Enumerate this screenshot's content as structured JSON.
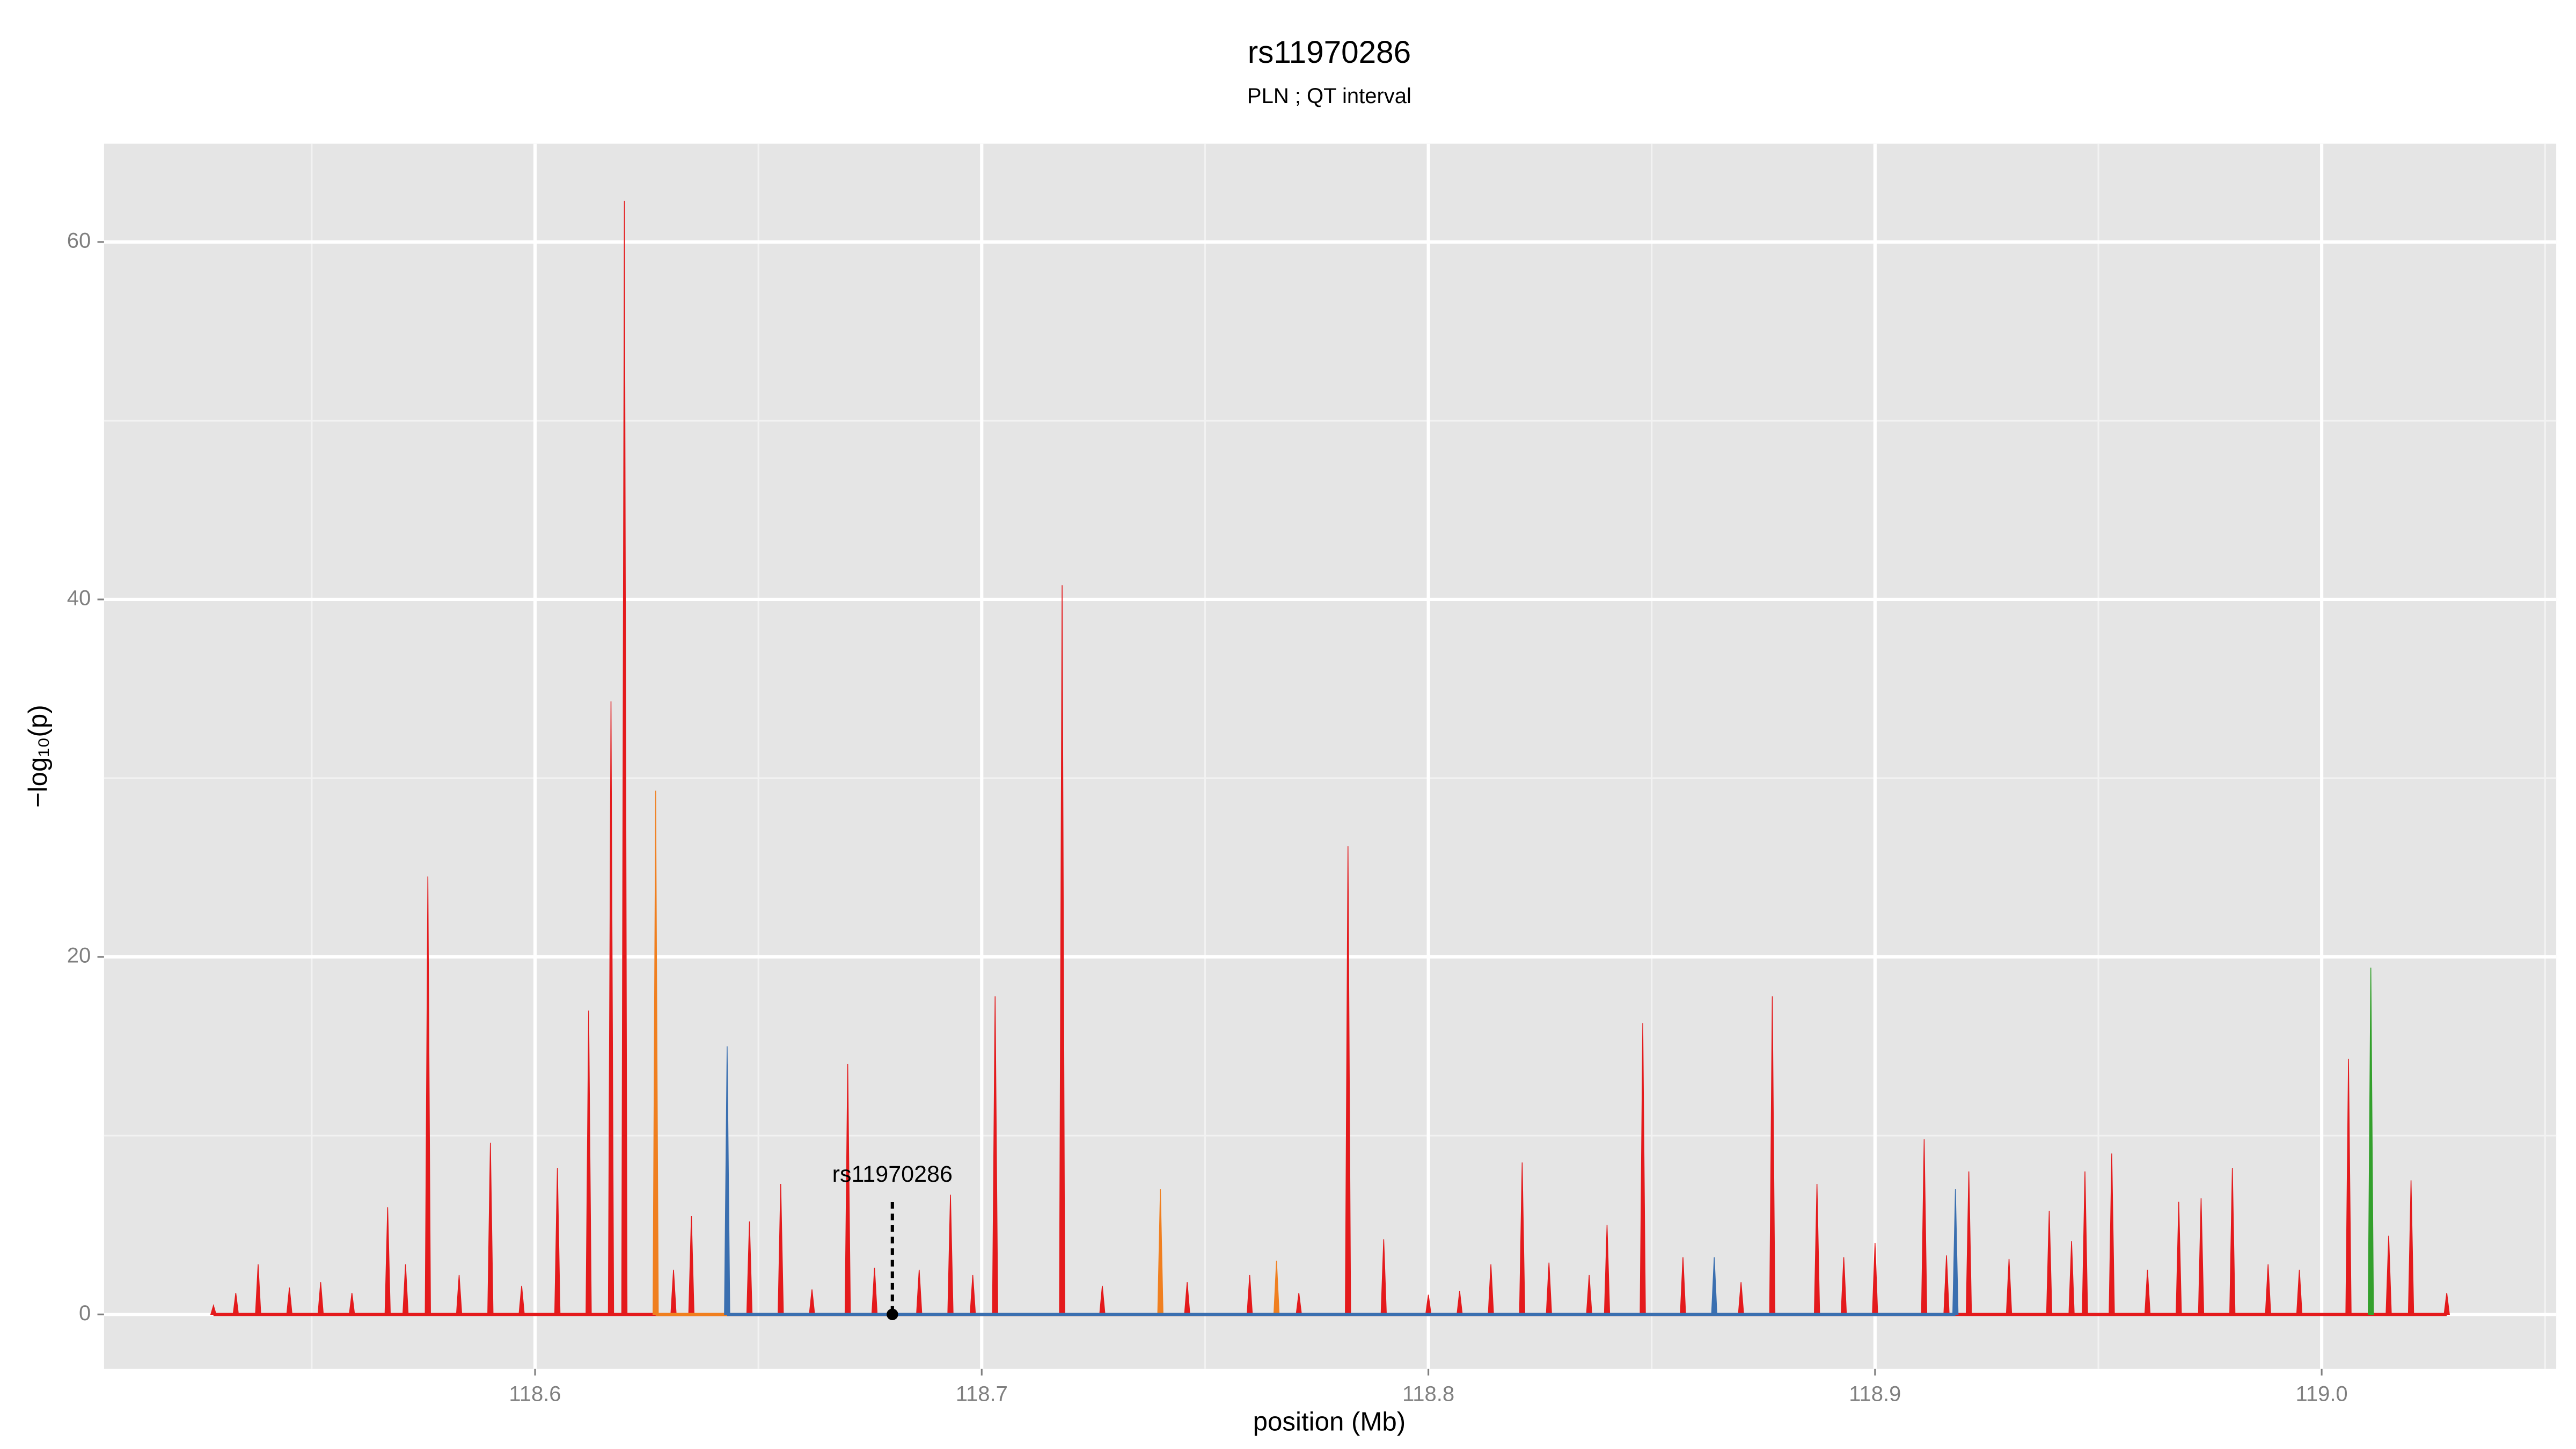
{
  "chart_data": {
    "type": "spike",
    "title": "rs11970286",
    "subtitle": "PLN ; QT interval",
    "x_label": "position (Mb)",
    "y_label": "−log₁₀(p)",
    "xlim": [
      118.5035,
      119.0525
    ],
    "ylim": [
      -3.05,
      65.5
    ],
    "xticks": [
      118.6,
      118.7,
      118.8,
      118.9,
      {
        "value": 119.0,
        "label": "119.0"
      }
    ],
    "yticks": [
      0,
      20,
      40,
      60
    ],
    "grid": true,
    "series": [
      {
        "color": "#e41a1c",
        "x": [
          118.528,
          118.533,
          118.538,
          118.545,
          118.552,
          118.559,
          118.567,
          118.571,
          118.576,
          118.583,
          118.59,
          118.597,
          118.605,
          118.612,
          118.617,
          118.62,
          118.631,
          118.635,
          118.648,
          118.655,
          118.662,
          118.67,
          118.676,
          118.686,
          118.693,
          118.698,
          118.703,
          118.718,
          118.727,
          118.746,
          118.76,
          118.771,
          118.782,
          118.79,
          118.8,
          118.807,
          118.814,
          118.821,
          118.827,
          118.836,
          118.84,
          118.848,
          118.857,
          118.87,
          118.877,
          118.887,
          118.893,
          118.9,
          118.911,
          118.916,
          118.921,
          118.93,
          118.939,
          118.944,
          118.947,
          118.953,
          118.961,
          118.968,
          118.973,
          118.98,
          118.988,
          118.995,
          119.006,
          119.015,
          119.02,
          119.028
        ],
        "values": [
          0.5,
          1.2,
          2.8,
          1.5,
          1.8,
          1.2,
          6,
          2.8,
          24.5,
          2.2,
          9.6,
          1.6,
          8.2,
          17,
          34.3,
          62.3,
          2.5,
          5.5,
          5.2,
          7.3,
          1.4,
          14,
          2.6,
          2.5,
          6.7,
          2.2,
          17.8,
          40.8,
          1.6,
          1.8,
          2.2,
          1.2,
          26.2,
          4.2,
          1.1,
          1.3,
          2.8,
          8.5,
          2.9,
          2.2,
          5,
          16.3,
          3.2,
          1.8,
          17.8,
          7.3,
          3.2,
          4,
          9.8,
          3.3,
          8,
          3.1,
          5.8,
          4.1,
          8,
          9,
          2.5,
          6.3,
          6.5,
          8.2,
          2.8,
          2.5,
          14.3,
          4.4,
          7.5,
          1.2
        ]
      },
      {
        "color": "#f07f1f",
        "x": [
          118.627,
          118.74,
          118.766
        ],
        "values": [
          29.3,
          7,
          3
        ]
      },
      {
        "color": "#3a6fb0",
        "x": [
          118.643,
          118.864,
          118.918
        ],
        "values": [
          15,
          3.2,
          7
        ]
      },
      {
        "color": "#33a02c",
        "x": [
          119.011
        ],
        "values": [
          19.4
        ]
      }
    ],
    "annotations": [
      {
        "text": "rs11970286",
        "x": 118.68,
        "y": 0
      }
    ]
  }
}
